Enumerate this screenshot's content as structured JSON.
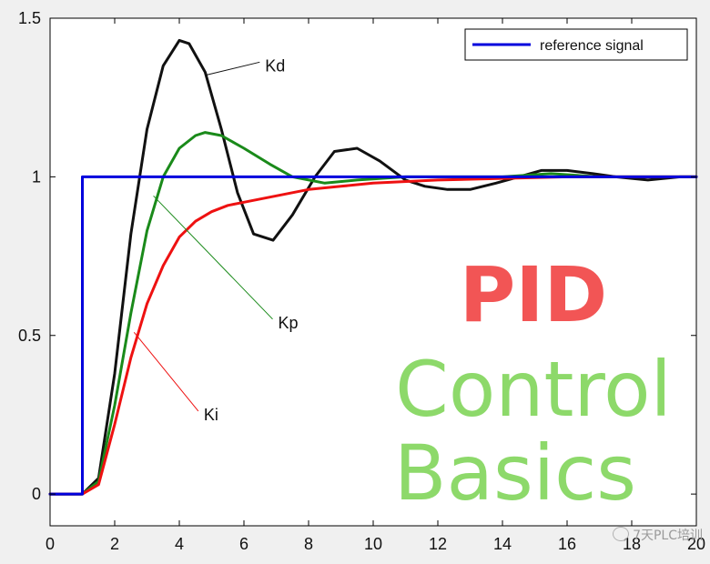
{
  "chart_data": {
    "type": "line",
    "title": "",
    "xlabel": "",
    "ylabel": "",
    "xlim": [
      0,
      20
    ],
    "ylim": [
      -0.1,
      1.5
    ],
    "xticks": [
      0,
      2,
      4,
      6,
      8,
      10,
      12,
      14,
      16,
      18,
      20
    ],
    "yticks": [
      0,
      0.5,
      1,
      1.5
    ],
    "grid": false,
    "legend": {
      "placement": "top-right",
      "entries": [
        "reference signal"
      ]
    },
    "series": [
      {
        "name": "reference signal",
        "color": "#0000dd",
        "x": [
          0,
          1,
          1,
          20
        ],
        "y": [
          0,
          0,
          1,
          1
        ]
      },
      {
        "name": "Kd",
        "color": "#111111",
        "x": [
          0,
          1,
          1.5,
          2,
          2.5,
          3,
          3.5,
          4,
          4.3,
          4.8,
          5.3,
          5.8,
          6.3,
          6.9,
          7.5,
          8.2,
          8.8,
          9.5,
          10.2,
          11,
          11.6,
          12.3,
          13,
          13.8,
          14.5,
          15.2,
          16,
          16.8,
          17.5,
          18.5,
          19.5,
          20
        ],
        "y": [
          0,
          0,
          0.05,
          0.38,
          0.82,
          1.15,
          1.35,
          1.43,
          1.42,
          1.33,
          1.15,
          0.95,
          0.82,
          0.8,
          0.88,
          1.0,
          1.08,
          1.09,
          1.05,
          0.99,
          0.97,
          0.96,
          0.96,
          0.98,
          1.0,
          1.02,
          1.02,
          1.01,
          1.0,
          0.99,
          1.0,
          1.0
        ]
      },
      {
        "name": "Kp",
        "color": "#1a8a1a",
        "x": [
          0,
          1,
          1.5,
          2,
          2.5,
          3,
          3.5,
          4,
          4.5,
          4.8,
          5.3,
          6,
          6.8,
          7.5,
          8.5,
          9.5,
          11,
          12.5,
          14,
          15.5,
          17,
          18.5,
          20
        ],
        "y": [
          0,
          0,
          0.04,
          0.28,
          0.57,
          0.83,
          1.0,
          1.09,
          1.13,
          1.14,
          1.13,
          1.09,
          1.04,
          1.0,
          0.98,
          0.99,
          1.0,
          1.0,
          1.0,
          1.01,
          1.0,
          1.0,
          1.0
        ]
      },
      {
        "name": "Ki",
        "color": "#ee1111",
        "x": [
          0,
          1,
          1.5,
          2,
          2.5,
          3,
          3.5,
          4,
          4.5,
          5,
          5.5,
          6,
          7,
          8,
          9,
          10,
          12,
          14,
          16,
          18,
          20
        ],
        "y": [
          0,
          0,
          0.03,
          0.22,
          0.43,
          0.6,
          0.72,
          0.81,
          0.86,
          0.89,
          0.91,
          0.92,
          0.94,
          0.96,
          0.97,
          0.98,
          0.99,
          0.995,
          1.0,
          1.0,
          1.0
        ]
      }
    ],
    "annotations": [
      {
        "text": "Kd",
        "x": 6.6,
        "y": 1.35,
        "target_x": 4.8,
        "target_y": 1.32
      },
      {
        "text": "Kp",
        "x": 7.0,
        "y": 0.54,
        "target_x": 3.2,
        "target_y": 0.94
      },
      {
        "text": "Ki",
        "x": 4.7,
        "y": 0.25,
        "target_x": 2.6,
        "target_y": 0.51
      }
    ]
  },
  "overlay_title": {
    "line1": "PID",
    "line2": "Control",
    "line3": "Basics"
  },
  "watermark": {
    "text": "7天PLC培训"
  }
}
